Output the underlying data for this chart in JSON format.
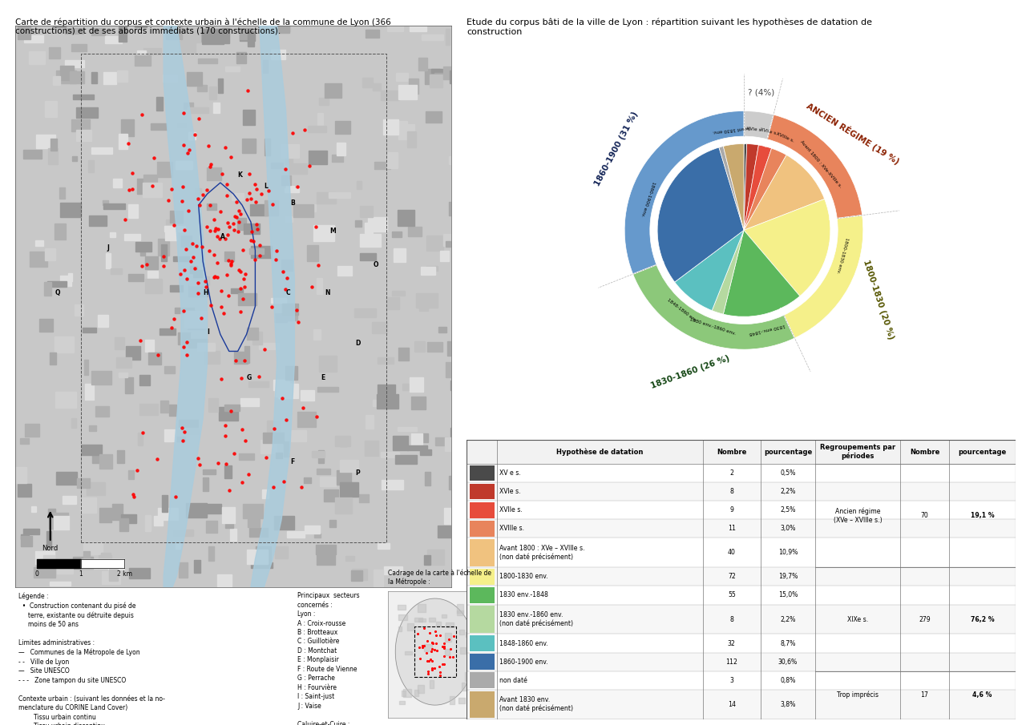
{
  "title_left": "Carte de répartition du corpus et contexte urbain à l'échelle de la commune de Lyon (366\nconstructions) et de ses abords immédiats (170 constructions).",
  "title_right": "Etude du corpus bâti de la ville de Lyon : répartition suivant les hypothèses de datation de\nconstruction",
  "pie_slices": [
    {
      "label": "XV e s.",
      "value": 2,
      "pct": 0.5,
      "color": "#4a4a4a"
    },
    {
      "label": "XVIe s.",
      "value": 8,
      "pct": 2.2,
      "color": "#c0392b"
    },
    {
      "label": "XVIIe s.",
      "value": 9,
      "pct": 2.5,
      "color": "#e74c3c"
    },
    {
      "label": "XVIIIe s.",
      "value": 11,
      "pct": 3.0,
      "color": "#e8845c"
    },
    {
      "label": "Avant 1800 : XVe-XVIIIe s.\n(non daté précisément)",
      "value": 40,
      "pct": 10.9,
      "color": "#f0c27f"
    },
    {
      "label": "1800-1830 env.",
      "value": 72,
      "pct": 19.7,
      "color": "#f5f08a"
    },
    {
      "label": "1830 env.-1848",
      "value": 55,
      "pct": 15.0,
      "color": "#5cb85c"
    },
    {
      "label": "1830 env.-1860 env.\n(non daté précisément)",
      "value": 8,
      "pct": 2.2,
      "color": "#b5d9a0"
    },
    {
      "label": "1848-1860 env.",
      "value": 32,
      "pct": 8.7,
      "color": "#5bc0c0"
    },
    {
      "label": "1860-1900 env.",
      "value": 112,
      "pct": 30.6,
      "color": "#3a6ea8"
    },
    {
      "label": "non daté",
      "value": 3,
      "pct": 0.8,
      "color": "#aaaaaa"
    },
    {
      "label": "Avant 1830 env.\n(non daté précisément)",
      "value": 14,
      "pct": 3.8,
      "color": "#c9a96e"
    }
  ],
  "outer_ring": [
    {
      "label": "? (4%)",
      "value": 4,
      "color": "#cccccc"
    },
    {
      "label": "ANCIEN RÉGIME (19 %)",
      "value": 19,
      "color": "#e8845c"
    },
    {
      "label": "1800-1830 (20 %)",
      "value": 20,
      "color": "#f5f08a"
    },
    {
      "label": "1830-1860 (26 %)",
      "value": 26,
      "color": "#8cc87a"
    },
    {
      "label": "1860-1900 (31 %)",
      "value": 31,
      "color": "#6699cc"
    }
  ],
  "table_rows": [
    {
      "color": "#4a4a4a",
      "label": "XV e s.",
      "nombre": "2",
      "pct": "0,5%"
    },
    {
      "color": "#c0392b",
      "label": "XVIe s.",
      "nombre": "8",
      "pct": "2,2%"
    },
    {
      "color": "#e74c3c",
      "label": "XVIIe s.",
      "nombre": "9",
      "pct": "2,5%"
    },
    {
      "color": "#e8845c",
      "label": "XVIIIe s.",
      "nombre": "11",
      "pct": "3,0%"
    },
    {
      "color": "#f0c27f",
      "label": "Avant 1800 : XVe – XVIIIe s.\n(non daté précisément)",
      "nombre": "40",
      "pct": "10,9%"
    },
    {
      "color": "#f5f08a",
      "label": "1800-1830 env.",
      "nombre": "72",
      "pct": "19,7%"
    },
    {
      "color": "#5cb85c",
      "label": "1830 env.-1848",
      "nombre": "55",
      "pct": "15,0%"
    },
    {
      "color": "#b5d9a0",
      "label": "1830 env.-1860 env.\n(non daté précisément)",
      "nombre": "8",
      "pct": "2,2%"
    },
    {
      "color": "#5bc0c0",
      "label": "1848-1860 env.",
      "nombre": "32",
      "pct": "8,7%"
    },
    {
      "color": "#3a6ea8",
      "label": "1860-1900 env.",
      "nombre": "112",
      "pct": "30,6%"
    },
    {
      "color": "#aaaaaa",
      "label": "non daté",
      "nombre": "3",
      "pct": "0,8%"
    },
    {
      "color": "#c9a96e",
      "label": "Avant 1830 env.\n(non daté précisément)",
      "nombre": "14",
      "pct": "3,8%"
    }
  ],
  "group_spans": [
    {
      "label": "Ancien régime\n(XVe – XVIIIe s.)",
      "start": 0,
      "end": 4,
      "nombre": "70",
      "pct": "19,1 %"
    },
    {
      "label": "XIXe s.",
      "start": 5,
      "end": 9,
      "nombre": "279",
      "pct": "76,2 %"
    },
    {
      "label": "Trop imprécis",
      "start": 10,
      "end": 11,
      "nombre": "17",
      "pct": "4,6 %"
    }
  ],
  "bg_color": "#ffffff"
}
